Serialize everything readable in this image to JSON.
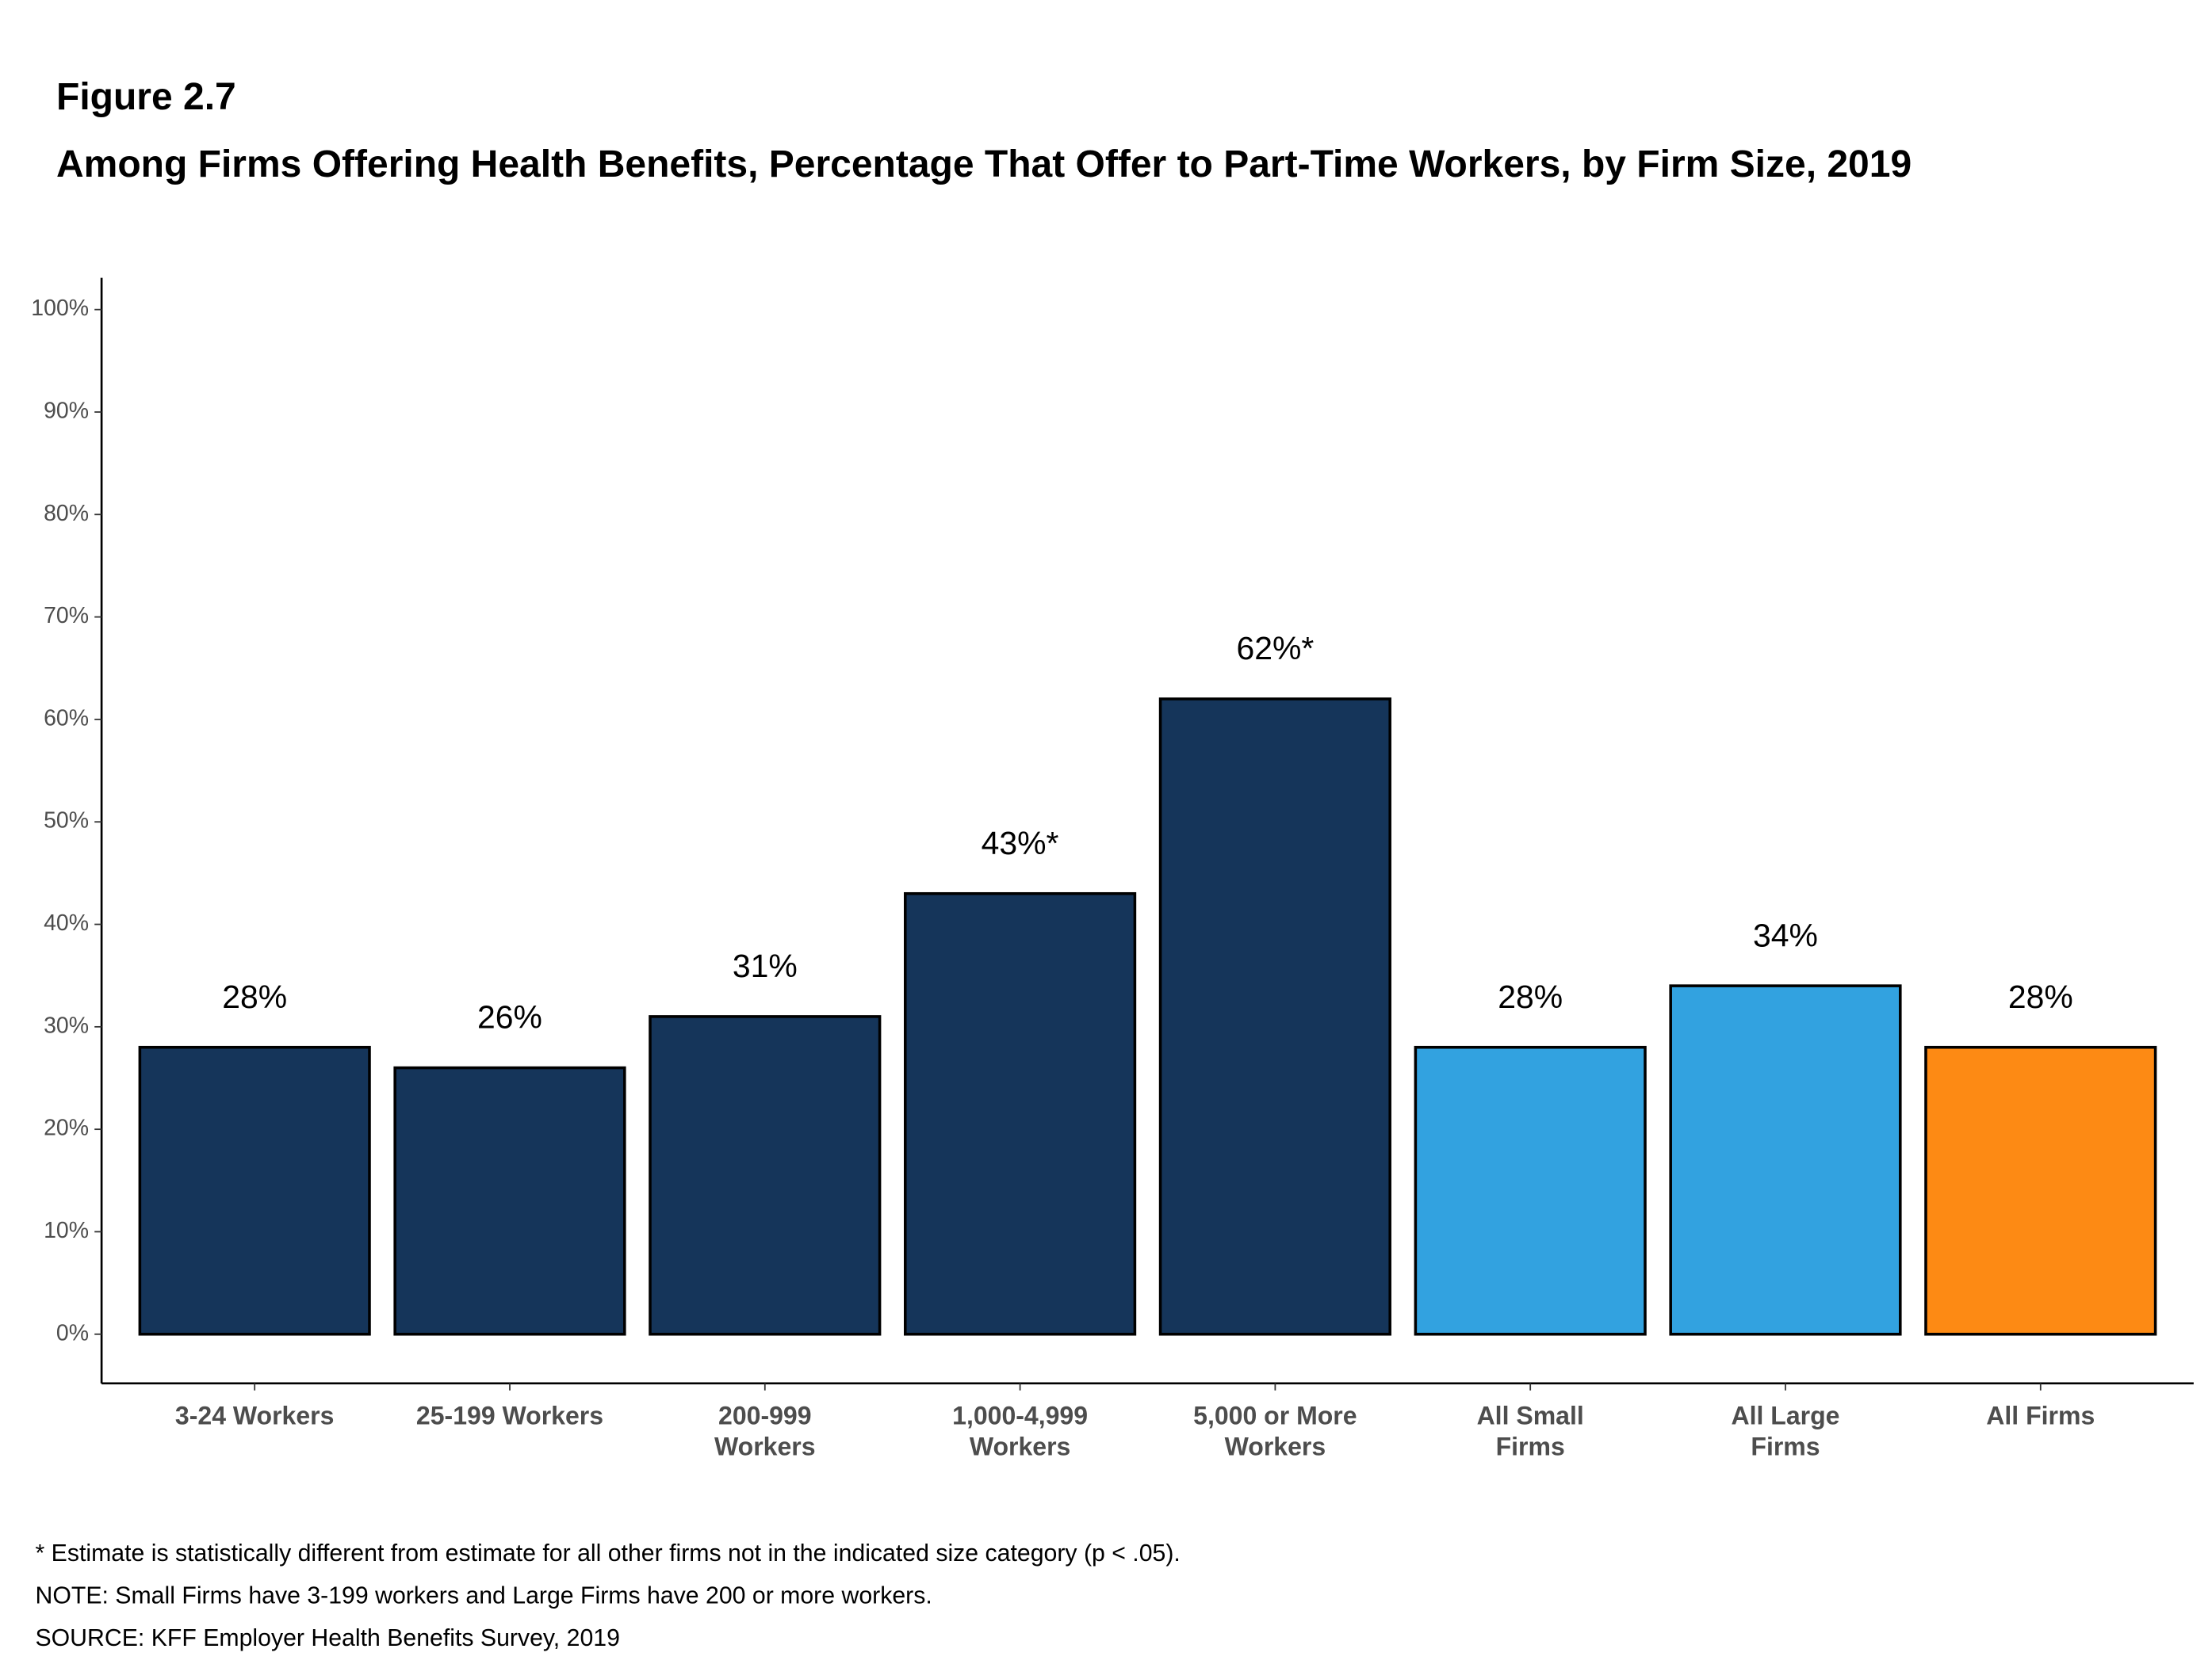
{
  "chart_data": {
    "type": "bar",
    "figure_label": "Figure 2.7",
    "title": "Among Firms Offering Health Benefits, Percentage That Offer to Part-Time Workers, by Firm Size, 2019",
    "categories": [
      "3-24 Workers",
      "25-199 Workers",
      "200-999 Workers",
      "1,000-4,999 Workers",
      "5,000 or More Workers",
      "All Small Firms",
      "All Large Firms",
      "All Firms"
    ],
    "values": [
      28,
      26,
      31,
      43,
      62,
      28,
      34,
      28
    ],
    "value_labels": [
      "28%",
      "26%",
      "31%",
      "43%*",
      "62%*",
      "28%",
      "34%",
      "28%"
    ],
    "colors": [
      "#15355a",
      "#15355a",
      "#15355a",
      "#15355a",
      "#15355a",
      "#32a2e0",
      "#32a2e0",
      "#fd8a14"
    ],
    "ylim": [
      -4.8,
      103.1
    ],
    "yticks": [
      {
        "value": 0,
        "label": "0%"
      },
      {
        "value": 10,
        "label": "10%"
      },
      {
        "value": 20,
        "label": "20%"
      },
      {
        "value": 30,
        "label": "30%"
      },
      {
        "value": 40,
        "label": "40%"
      },
      {
        "value": 50,
        "label": "50%"
      },
      {
        "value": 60,
        "label": "60%"
      },
      {
        "value": 70,
        "label": "70%"
      },
      {
        "value": 80,
        "label": "80%"
      },
      {
        "value": 90,
        "label": "90%"
      },
      {
        "value": 100,
        "label": "100%"
      }
    ],
    "grid": false,
    "notes": [
      "* Estimate is statistically different from estimate for all other firms not in the indicated size category (p < .05).",
      "NOTE: Small Firms have 3-199 workers and Large Firms have 200 or more workers.",
      "SOURCE: KFF Employer Health Benefits Survey, 2019"
    ]
  }
}
